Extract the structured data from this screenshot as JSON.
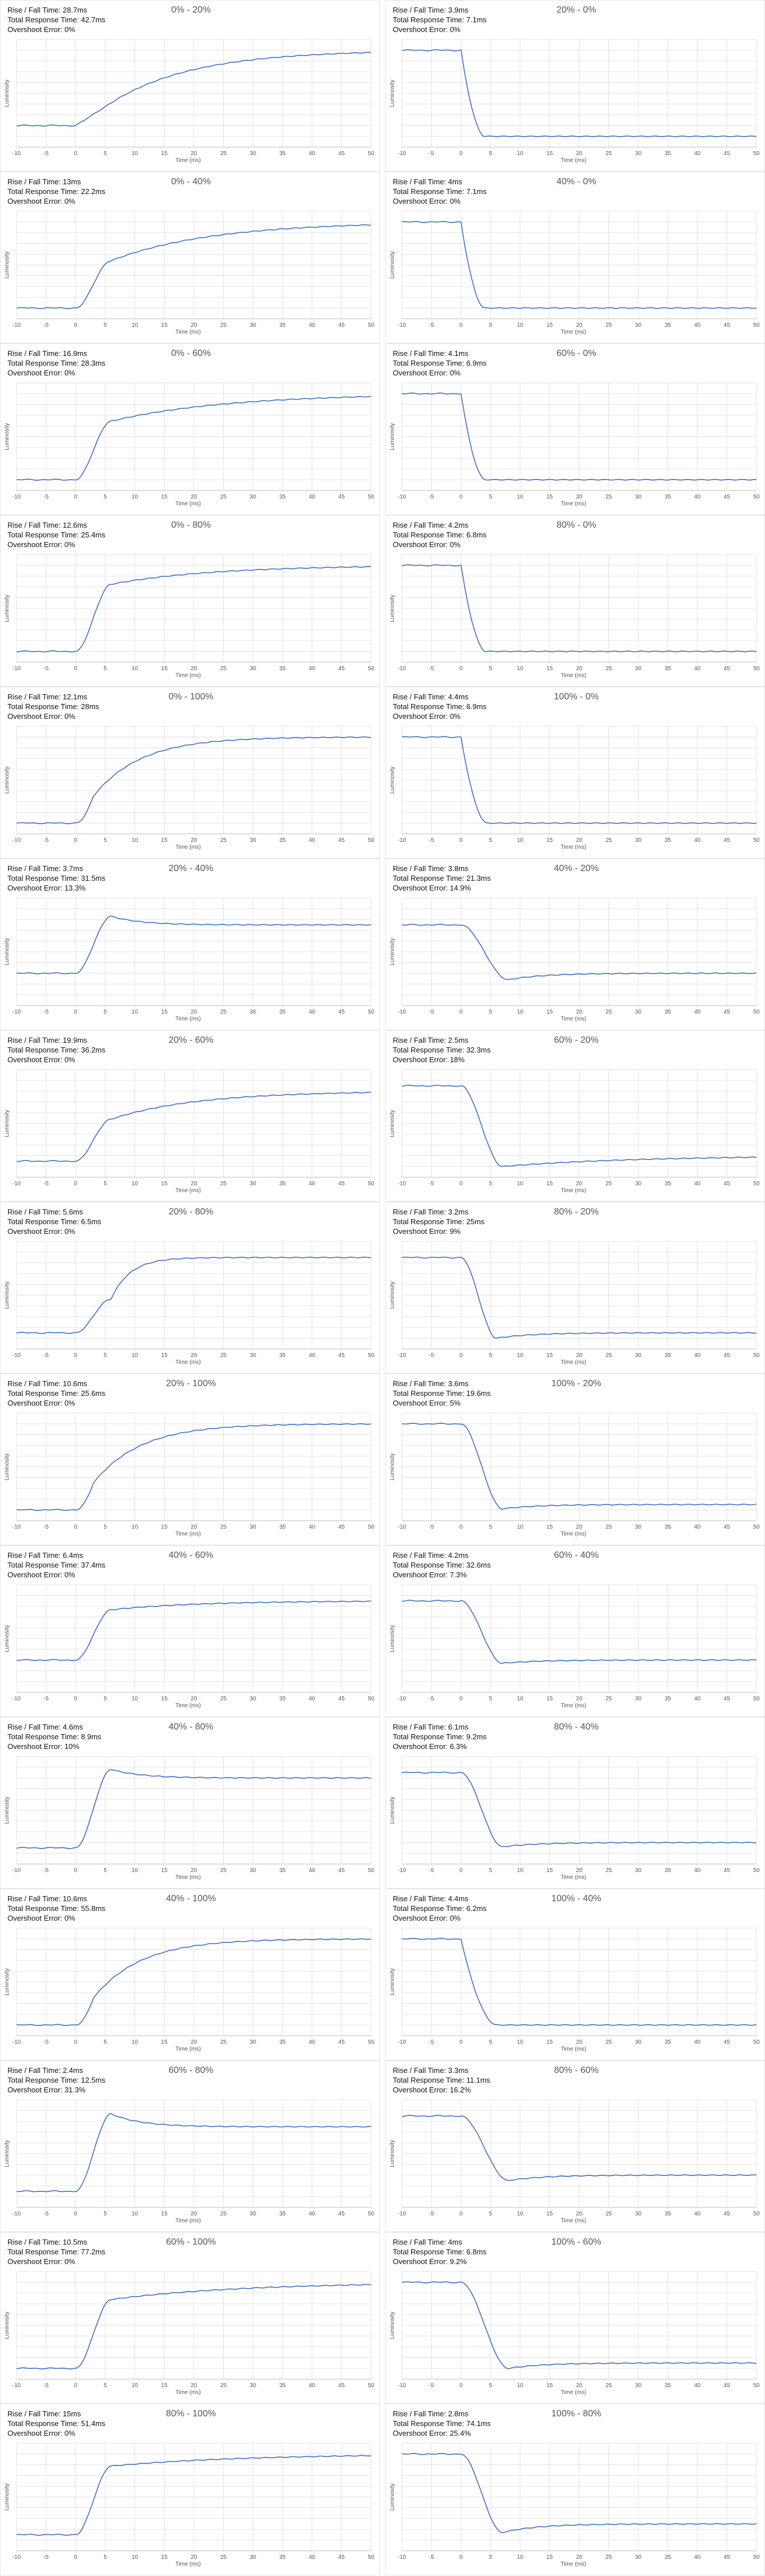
{
  "labels": {
    "rise_prefix": "Rise / Fall Time: ",
    "total_prefix": "Total Response Time: ",
    "overshoot_prefix": "Overshoot Error: ",
    "xlabel": "Time (ms)",
    "ylabel": "Luminosity"
  },
  "colors": {
    "line": "#3f6fbf",
    "grid": "#e2e2e2",
    "axis": "#bdbdbd",
    "tick": "#555555"
  },
  "chart_data": [
    {
      "type": "line",
      "title": "0% - 20%",
      "rise": "28.7ms",
      "total": "42.7ms",
      "overshoot": "0%",
      "kind": "rise",
      "x_ticks": [
        -10,
        -5,
        0,
        5,
        10,
        15,
        20,
        25,
        30,
        35,
        40,
        45,
        50
      ],
      "xlim": [
        -10,
        50
      ],
      "start": 0.2,
      "end": 0.9,
      "response_ms": 28.7,
      "over": 0,
      "knee": 0.35,
      "tail": 0.8,
      "shape": "slow"
    },
    {
      "type": "line",
      "title": "20% - 0%",
      "rise": "3.9ms",
      "total": "7.1ms",
      "overshoot": "0%",
      "kind": "fall",
      "x_ticks": [
        -10,
        -5,
        0,
        5,
        10,
        15,
        20,
        25,
        30,
        35,
        40,
        45,
        50
      ],
      "xlim": [
        -10,
        50
      ],
      "start": 0.9,
      "end": 0.1,
      "response_ms": 3.9,
      "over": 0
    },
    {
      "type": "line",
      "title": "0% - 40%",
      "rise": "13ms",
      "total": "22.2ms",
      "overshoot": "0%",
      "kind": "rise",
      "x_ticks": [
        -10,
        -5,
        0,
        5,
        10,
        15,
        20,
        25,
        30,
        35,
        40,
        45,
        50
      ],
      "xlim": [
        -10,
        50
      ],
      "start": 0.1,
      "end": 0.9,
      "response_ms": 13,
      "over": 0,
      "knee": 0.55,
      "tail": 0.6,
      "shape": "knee"
    },
    {
      "type": "line",
      "title": "40% - 0%",
      "rise": "4ms",
      "total": "7.1ms",
      "overshoot": "0%",
      "kind": "fall",
      "x_ticks": [
        -10,
        -5,
        0,
        5,
        10,
        15,
        20,
        25,
        30,
        35,
        40,
        45,
        50
      ],
      "xlim": [
        -10,
        50
      ],
      "start": 0.9,
      "end": 0.1,
      "response_ms": 4,
      "over": 0
    },
    {
      "type": "line",
      "title": "0% - 60%",
      "rise": "16.9ms",
      "total": "28.3ms",
      "overshoot": "0%",
      "kind": "rise",
      "x_ticks": [
        -10,
        -5,
        0,
        5,
        10,
        15,
        20,
        25,
        30,
        35,
        40,
        45,
        50
      ],
      "xlim": [
        -10,
        50
      ],
      "start": 0.1,
      "end": 0.9,
      "response_ms": 16.9,
      "over": 0,
      "knee": 0.68,
      "tail": 0.7,
      "shape": "knee"
    },
    {
      "type": "line",
      "title": "60% - 0%",
      "rise": "4.1ms",
      "total": "6.9ms",
      "overshoot": "0%",
      "kind": "fall",
      "x_ticks": [
        -10,
        -5,
        0,
        5,
        10,
        15,
        20,
        25,
        30,
        35,
        40,
        45,
        50
      ],
      "xlim": [
        -10,
        50
      ],
      "start": 0.9,
      "end": 0.1,
      "response_ms": 4.1,
      "over": 0
    },
    {
      "type": "line",
      "title": "0% - 80%",
      "rise": "12.6ms",
      "total": "25.4ms",
      "overshoot": "0%",
      "kind": "rise",
      "x_ticks": [
        -10,
        -5,
        0,
        5,
        10,
        15,
        20,
        25,
        30,
        35,
        40,
        45,
        50
      ],
      "xlim": [
        -10,
        50
      ],
      "start": 0.1,
      "end": 0.9,
      "response_ms": 12.6,
      "over": 0,
      "knee": 0.78,
      "tail": 0.6,
      "shape": "knee"
    },
    {
      "type": "line",
      "title": "80% - 0%",
      "rise": "4.2ms",
      "total": "6.8ms",
      "overshoot": "0%",
      "kind": "fall",
      "x_ticks": [
        -10,
        -5,
        0,
        5,
        10,
        15,
        20,
        25,
        30,
        35,
        40,
        45,
        50
      ],
      "xlim": [
        -10,
        50
      ],
      "start": 0.9,
      "end": 0.1,
      "response_ms": 4.2,
      "over": 0
    },
    {
      "type": "line",
      "title": "0% - 100%",
      "rise": "12.1ms",
      "total": "28ms",
      "overshoot": "0%",
      "kind": "rise",
      "x_ticks": [
        -10,
        -5,
        0,
        5,
        10,
        15,
        20,
        25,
        30,
        35,
        40,
        45,
        50
      ],
      "xlim": [
        -10,
        50
      ],
      "start": 0.1,
      "end": 0.9,
      "response_ms": 12.1,
      "over": 0,
      "knee": 0.2,
      "tail": 0.8,
      "shape": "smooth"
    },
    {
      "type": "line",
      "title": "100% - 0%",
      "rise": "4.4ms",
      "total": "6.9ms",
      "overshoot": "0%",
      "kind": "fall",
      "x_ticks": [
        -10,
        -5,
        0,
        5,
        10,
        15,
        20,
        25,
        30,
        35,
        40,
        45,
        50
      ],
      "xlim": [
        -10,
        50
      ],
      "start": 0.9,
      "end": 0.1,
      "response_ms": 4.4,
      "over": 0
    },
    {
      "type": "line",
      "title": "20% - 40%",
      "rise": "3.7ms",
      "total": "31.5ms",
      "overshoot": "13.3%",
      "kind": "rise",
      "x_ticks": [
        -10,
        -5,
        0,
        5,
        10,
        15,
        20,
        25,
        30,
        35,
        40,
        45,
        50
      ],
      "xlim": [
        -10,
        50
      ],
      "start": 0.3,
      "end": 0.75,
      "response_ms": 5,
      "over": 0.08
    },
    {
      "type": "line",
      "title": "40% - 20%",
      "rise": "3.8ms",
      "total": "21.3ms",
      "overshoot": "14.9%",
      "kind": "fall",
      "x_ticks": [
        -10,
        -5,
        0,
        5,
        10,
        15,
        20,
        25,
        30,
        35,
        40,
        45,
        50
      ],
      "xlim": [
        -10,
        50
      ],
      "start": 0.75,
      "end": 0.3,
      "response_ms": 8,
      "over": 0.06
    },
    {
      "type": "line",
      "title": "20% - 60%",
      "rise": "19.9ms",
      "total": "36.2ms",
      "overshoot": "0%",
      "kind": "rise",
      "x_ticks": [
        -10,
        -5,
        0,
        5,
        10,
        15,
        20,
        25,
        30,
        35,
        40,
        45,
        50
      ],
      "xlim": [
        -10,
        50
      ],
      "start": 0.15,
      "end": 0.8,
      "response_ms": 6,
      "over": 0,
      "knee": 0.6,
      "tail": 0.5,
      "shape": "knee"
    },
    {
      "type": "line",
      "title": "60% - 20%",
      "rise": "2.5ms",
      "total": "32.3ms",
      "overshoot": "18%",
      "kind": "fall",
      "x_ticks": [
        -10,
        -5,
        0,
        5,
        10,
        15,
        20,
        25,
        30,
        35,
        40,
        45,
        50
      ],
      "xlim": [
        -10,
        50
      ],
      "start": 0.85,
      "end": 0.2,
      "response_ms": 7,
      "over": 0.1
    },
    {
      "type": "line",
      "title": "20% - 80%",
      "rise": "5.6ms",
      "total": "6.5ms",
      "overshoot": "0%",
      "kind": "rise",
      "x_ticks": [
        -10,
        -5,
        0,
        5,
        10,
        15,
        20,
        25,
        30,
        35,
        40,
        45,
        50
      ],
      "xlim": [
        -10,
        50
      ],
      "start": 0.15,
      "end": 0.85,
      "response_ms": 6,
      "over": 0,
      "knee": 0.45,
      "tail": 0.05,
      "shape": "knee"
    },
    {
      "type": "line",
      "title": "80% - 20%",
      "rise": "3.2ms",
      "total": "25ms",
      "overshoot": "9%",
      "kind": "fall",
      "x_ticks": [
        -10,
        -5,
        0,
        5,
        10,
        15,
        20,
        25,
        30,
        35,
        40,
        45,
        50
      ],
      "xlim": [
        -10,
        50
      ],
      "start": 0.85,
      "end": 0.15,
      "response_ms": 6,
      "over": 0.05
    },
    {
      "type": "line",
      "title": "20% - 100%",
      "rise": "10.6ms",
      "total": "25.6ms",
      "overshoot": "0%",
      "kind": "rise",
      "x_ticks": [
        -10,
        -5,
        0,
        5,
        10,
        15,
        20,
        25,
        30,
        35,
        40,
        45,
        50
      ],
      "xlim": [
        -10,
        50
      ],
      "start": 0.1,
      "end": 0.9,
      "response_ms": 12,
      "over": 0,
      "knee": 0.3,
      "tail": 0.6,
      "shape": "smooth"
    },
    {
      "type": "line",
      "title": "100% - 20%",
      "rise": "3.6ms",
      "total": "19.6ms",
      "overshoot": "5%",
      "kind": "fall",
      "x_ticks": [
        -10,
        -5,
        0,
        5,
        10,
        15,
        20,
        25,
        30,
        35,
        40,
        45,
        50
      ],
      "xlim": [
        -10,
        50
      ],
      "start": 0.9,
      "end": 0.15,
      "response_ms": 7,
      "over": 0.04
    },
    {
      "type": "line",
      "title": "40% - 60%",
      "rise": "6.4ms",
      "total": "37.4ms",
      "overshoot": "0%",
      "kind": "rise",
      "x_ticks": [
        -10,
        -5,
        0,
        5,
        10,
        15,
        20,
        25,
        30,
        35,
        40,
        45,
        50
      ],
      "xlim": [
        -10,
        50
      ],
      "start": 0.3,
      "end": 0.85,
      "response_ms": 6,
      "over": 0,
      "knee": 0.85,
      "tail": 0.5,
      "shape": "knee"
    },
    {
      "type": "line",
      "title": "60% - 40%",
      "rise": "4.2ms",
      "total": "32.6ms",
      "overshoot": "7.3%",
      "kind": "fall",
      "x_ticks": [
        -10,
        -5,
        0,
        5,
        10,
        15,
        20,
        25,
        30,
        35,
        40,
        45,
        50
      ],
      "xlim": [
        -10,
        50
      ],
      "start": 0.85,
      "end": 0.3,
      "response_ms": 7,
      "over": 0.03
    },
    {
      "type": "line",
      "title": "40% - 80%",
      "rise": "4.6ms",
      "total": "8.9ms",
      "overshoot": "10%",
      "kind": "rise",
      "x_ticks": [
        -10,
        -5,
        0,
        5,
        10,
        15,
        20,
        25,
        30,
        35,
        40,
        45,
        50
      ],
      "xlim": [
        -10,
        50
      ],
      "start": 0.15,
      "end": 0.8,
      "response_ms": 6,
      "over": 0.08
    },
    {
      "type": "line",
      "title": "80% - 40%",
      "rise": "6.1ms",
      "total": "9.2ms",
      "overshoot": "6.3%",
      "kind": "fall",
      "x_ticks": [
        -10,
        -5,
        0,
        5,
        10,
        15,
        20,
        25,
        30,
        35,
        40,
        45,
        50
      ],
      "xlim": [
        -10,
        50
      ],
      "start": 0.85,
      "end": 0.2,
      "response_ms": 7,
      "over": 0.04
    },
    {
      "type": "line",
      "title": "40% - 100%",
      "rise": "10.6ms",
      "total": "55.8ms",
      "overshoot": "0%",
      "kind": "rise",
      "x_ticks": [
        -10,
        -5,
        0,
        5,
        10,
        15,
        20,
        25,
        30,
        35,
        40,
        45,
        50
      ],
      "xlim": [
        -10,
        50
      ],
      "start": 0.1,
      "end": 0.9,
      "response_ms": 10,
      "over": 0,
      "knee": 0.2,
      "tail": 0.8,
      "shape": "smooth"
    },
    {
      "type": "line",
      "title": "100% - 40%",
      "rise": "4.4ms",
      "total": "6.2ms",
      "overshoot": "0%",
      "kind": "fall",
      "x_ticks": [
        -10,
        -5,
        0,
        5,
        10,
        15,
        20,
        25,
        30,
        35,
        40,
        45,
        50
      ],
      "xlim": [
        -10,
        50
      ],
      "start": 0.9,
      "end": 0.1,
      "response_ms": 6,
      "over": 0
    },
    {
      "type": "line",
      "title": "60% - 80%",
      "rise": "2.4ms",
      "total": "12.5ms",
      "overshoot": "31.3%",
      "kind": "rise",
      "x_ticks": [
        -10,
        -5,
        0,
        5,
        10,
        15,
        20,
        25,
        30,
        35,
        40,
        45,
        50
      ],
      "xlim": [
        -10,
        50
      ],
      "start": 0.15,
      "end": 0.75,
      "response_ms": 7,
      "over": 0.12
    },
    {
      "type": "line",
      "title": "80% - 60%",
      "rise": "3.3ms",
      "total": "11.1ms",
      "overshoot": "16.2%",
      "kind": "fall",
      "x_ticks": [
        -10,
        -5,
        0,
        5,
        10,
        15,
        20,
        25,
        30,
        35,
        40,
        45,
        50
      ],
      "xlim": [
        -10,
        50
      ],
      "start": 0.85,
      "end": 0.3,
      "response_ms": 8,
      "over": 0.05
    },
    {
      "type": "line",
      "title": "60% - 100%",
      "rise": "10.5ms",
      "total": "77.2ms",
      "overshoot": "0%",
      "kind": "rise",
      "x_ticks": [
        -10,
        -5,
        0,
        5,
        10,
        15,
        20,
        25,
        30,
        35,
        40,
        45,
        50
      ],
      "xlim": [
        -10,
        50
      ],
      "start": 0.1,
      "end": 0.9,
      "response_ms": 8,
      "over": 0,
      "knee": 0.8,
      "tail": 0.8,
      "shape": "knee"
    },
    {
      "type": "line",
      "title": "100% - 60%",
      "rise": "4ms",
      "total": "6.8ms",
      "overshoot": "9.2%",
      "kind": "fall",
      "x_ticks": [
        -10,
        -5,
        0,
        5,
        10,
        15,
        20,
        25,
        30,
        35,
        40,
        45,
        50
      ],
      "xlim": [
        -10,
        50
      ],
      "start": 0.9,
      "end": 0.15,
      "response_ms": 8,
      "over": 0.05
    },
    {
      "type": "line",
      "title": "80% - 100%",
      "rise": "15ms",
      "total": "51.4ms",
      "overshoot": "0%",
      "kind": "rise",
      "x_ticks": [
        -10,
        -5,
        0,
        5,
        10,
        15,
        20,
        25,
        30,
        35,
        40,
        45,
        50
      ],
      "xlim": [
        -10,
        50
      ],
      "start": 0.15,
      "end": 0.9,
      "response_ms": 6,
      "over": 0,
      "knee": 0.85,
      "tail": 0.8,
      "shape": "knee"
    },
    {
      "type": "line",
      "title": "100% - 80%",
      "rise": "2.8ms",
      "total": "74.1ms",
      "overshoot": "25.4%",
      "kind": "fall",
      "x_ticks": [
        -10,
        -5,
        0,
        5,
        10,
        15,
        20,
        25,
        30,
        35,
        40,
        45,
        50
      ],
      "xlim": [
        -10,
        50
      ],
      "start": 0.9,
      "end": 0.25,
      "response_ms": 7,
      "over": 0.08
    }
  ]
}
